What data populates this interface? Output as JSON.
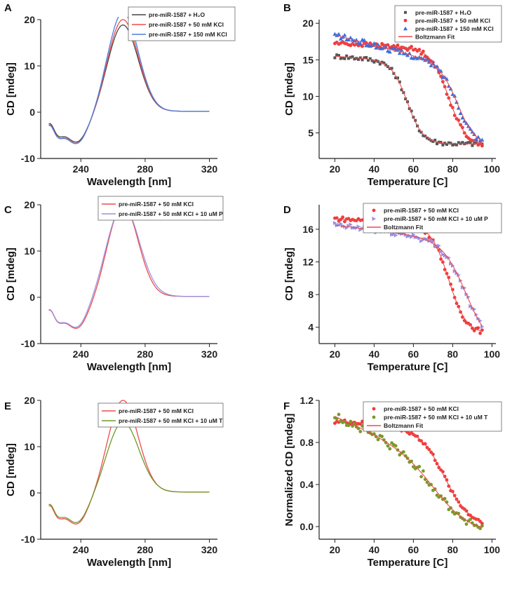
{
  "figure": {
    "panel_labels": [
      "A",
      "B",
      "C",
      "D",
      "E",
      "F"
    ]
  },
  "chart_data": [
    {
      "id": "A",
      "type": "line",
      "xlabel": "Wavelength [nm]",
      "ylabel": "CD [mdeg]",
      "xlim": [
        215,
        325
      ],
      "ylim": [
        -10,
        20
      ],
      "xticks": [
        240,
        280,
        320
      ],
      "yticks": [
        -10,
        0,
        10,
        20
      ],
      "xticklabels": [
        "240",
        "280",
        "320"
      ],
      "yticklabels": [
        "-10",
        "0",
        "10",
        "20"
      ],
      "legend": [
        "pre-miR-1587 + H₂O",
        "pre-miR-1587 + 50 mM KCl",
        "pre-miR-1587 + 150 mM KCl"
      ],
      "series": [
        {
          "name": "pre-miR-1587 + H₂O",
          "color": "#444444",
          "kind": "cd",
          "params": {
            "amp": 19.0,
            "base": -4.0
          }
        },
        {
          "name": "pre-miR-1587 + 50 mM KCl",
          "color": "#ef4b4b",
          "kind": "cd",
          "params": {
            "amp": 20.2,
            "base": -4.3
          }
        },
        {
          "name": "pre-miR-1587 + 150 mM KCl",
          "color": "#4a7fe0",
          "kind": "cd",
          "params": {
            "amp": 21.8,
            "base": -4.4
          }
        }
      ]
    },
    {
      "id": "B",
      "type": "scatter",
      "xlabel": "Temperature [C]",
      "ylabel": "CD [mdeg]",
      "xlim": [
        12,
        102
      ],
      "ylim": [
        1.5,
        20.5
      ],
      "xticks": [
        20,
        40,
        60,
        80,
        100
      ],
      "yticks": [
        5,
        10,
        15,
        20
      ],
      "xticklabels": [
        "20",
        "40",
        "60",
        "80",
        "100"
      ],
      "yticklabels": [
        "5",
        "10",
        "15",
        "20"
      ],
      "legend": [
        "pre-miR-1587 + H₂O",
        "pre-miR-1587 + 50 mM KCl",
        "pre-miR-1587 + 150 mM KCl",
        "Boltzmann Fit"
      ],
      "series": [
        {
          "name": "pre-miR-1587 + H₂O",
          "color": "#555555",
          "marker": "square",
          "kind": "boltz",
          "params": {
            "top": 15.5,
            "slope": -0.02,
            "bottom": 3.5,
            "tm": 57,
            "w": 4.0,
            "noise": 0.3
          }
        },
        {
          "name": "pre-miR-1587 + 50 mM KCl",
          "color": "#ef3b3b",
          "marker": "circle",
          "kind": "boltz",
          "params": {
            "top": 17.3,
            "slope": -0.015,
            "bottom": 3.2,
            "tm": 78,
            "w": 4.5,
            "noise": 0.3
          }
        },
        {
          "name": "pre-miR-1587 + 150 mM KCl",
          "color": "#3a6fe0",
          "marker": "triangle",
          "kind": "boltz",
          "params": {
            "top": 18.4,
            "slope": -0.07,
            "bottom": 3.3,
            "tm": 83,
            "w": 4.5,
            "noise": 0.35
          }
        }
      ],
      "fit": {
        "name": "Boltzmann Fit",
        "color": "#ef4b4b"
      }
    },
    {
      "id": "C",
      "type": "line",
      "xlabel": "Wavelength [nm]",
      "ylabel": "CD [mdeg]",
      "xlim": [
        215,
        325
      ],
      "ylim": [
        -10,
        20
      ],
      "xticks": [
        240,
        280,
        320
      ],
      "yticks": [
        -10,
        0,
        10,
        20
      ],
      "xticklabels": [
        "240",
        "280",
        "320"
      ],
      "yticklabels": [
        "-10",
        "0",
        "10",
        "20"
      ],
      "legend": [
        "pre-miR-1587 + 50 mM KCl",
        "pre-miR-1587 + 50 mM KCl + 10 uM P"
      ],
      "series": [
        {
          "name": "pre-miR-1587 + 50 mM KCl",
          "color": "#ef4b4b",
          "kind": "cd",
          "params": {
            "amp": 20.2,
            "base": -4.3
          }
        },
        {
          "name": "pre-miR-1587 + 50 mM KCl + 10 uM P",
          "color": "#9c8fe0",
          "kind": "cd",
          "params": {
            "amp": 20.0,
            "base": -4.2,
            "width": 1.07
          }
        }
      ]
    },
    {
      "id": "D",
      "type": "scatter",
      "xlabel": "Temperature [C]",
      "ylabel": "CD [mdeg]",
      "xlim": [
        12,
        102
      ],
      "ylim": [
        2.0,
        19.0
      ],
      "xticks": [
        20,
        40,
        60,
        80,
        100
      ],
      "yticks": [
        4,
        8,
        12,
        16
      ],
      "xticklabels": [
        "20",
        "40",
        "60",
        "80",
        "100"
      ],
      "yticklabels": [
        "4",
        "8",
        "12",
        "16"
      ],
      "legend": [
        "pre-miR-1587 + 50 mM KCl",
        "pre-miR-1587 + 50 mM KCl + 10 uM P",
        "Boltzmann Fit"
      ],
      "series": [
        {
          "name": "pre-miR-1587 + 50 mM KCl",
          "color": "#ef3b3b",
          "marker": "circle",
          "kind": "boltz",
          "params": {
            "top": 17.3,
            "slope": -0.015,
            "bottom": 3.2,
            "tm": 78,
            "w": 4.5,
            "noise": 0.3
          }
        },
        {
          "name": "pre-miR-1587 + 50 mM KCl + 10 uM P",
          "color": "#9c8fe0",
          "marker": "tri-right",
          "kind": "boltz",
          "params": {
            "top": 16.5,
            "slope": -0.03,
            "bottom": 1.5,
            "tm": 87,
            "w": 6.0,
            "noise": 0.35
          }
        }
      ],
      "fit": {
        "name": "Boltzmann Fit",
        "color": "#ef4b4b"
      }
    },
    {
      "id": "E",
      "type": "line",
      "xlabel": "Wavelength [nm]",
      "ylabel": "CD [mdeg]",
      "xlim": [
        215,
        325
      ],
      "ylim": [
        -10,
        20
      ],
      "xticks": [
        240,
        280,
        320
      ],
      "yticks": [
        -10,
        0,
        10,
        20
      ],
      "xticklabels": [
        "240",
        "280",
        "320"
      ],
      "yticklabels": [
        "-10",
        "0",
        "10",
        "20"
      ],
      "legend": [
        "pre-miR-1587 + 50 mM KCl",
        "pre-miR-1587 + 50 mM KCl + 10 uM T"
      ],
      "series": [
        {
          "name": "pre-miR-1587 + 50 mM KCl",
          "color": "#ef4b4b",
          "kind": "cd",
          "params": {
            "amp": 20.2,
            "base": -4.3
          }
        },
        {
          "name": "pre-miR-1587 + 50 mM KCl + 10 uM T",
          "color": "#6e9a2a",
          "kind": "cd",
          "params": {
            "amp": 15.5,
            "base": -4.0,
            "width": 1.05
          }
        }
      ]
    },
    {
      "id": "F",
      "type": "scatter",
      "xlabel": "Temperature [C]",
      "ylabel": "Normalized CD [mdeg]",
      "xlim": [
        12,
        102
      ],
      "ylim": [
        -0.12,
        1.2
      ],
      "xticks": [
        20,
        40,
        60,
        80,
        100
      ],
      "yticks": [
        0.0,
        0.4,
        0.8,
        1.2
      ],
      "xticklabels": [
        "20",
        "40",
        "60",
        "80",
        "100"
      ],
      "yticklabels": [
        "0.0",
        "0.4",
        "0.8",
        "1.2"
      ],
      "legend": [
        "pre-miR-1587 + 50 mM KCl",
        "pre-miR-1587 + 50 mM KCl + 10 uM T",
        "Boltzmann Fit"
      ],
      "series": [
        {
          "name": "pre-miR-1587 + 50 mM KCl",
          "color": "#ef3b3b",
          "marker": "circle",
          "kind": "boltz",
          "params": {
            "top": 1.0,
            "slope": -0.0012,
            "bottom": 0.0,
            "tm": 76,
            "w": 6.5,
            "noise": 0.02
          }
        },
        {
          "name": "pre-miR-1587 + 50 mM KCl + 10 uM T",
          "color": "#7a9a2a",
          "marker": "circle",
          "kind": "boltz",
          "params": {
            "top": 1.05,
            "slope": -0.008,
            "bottom": -0.05,
            "tm": 74,
            "w": 9.0,
            "noise": 0.04
          }
        }
      ],
      "fit": {
        "name": "Boltzmann Fit",
        "color": "#ef4b4b"
      }
    }
  ]
}
